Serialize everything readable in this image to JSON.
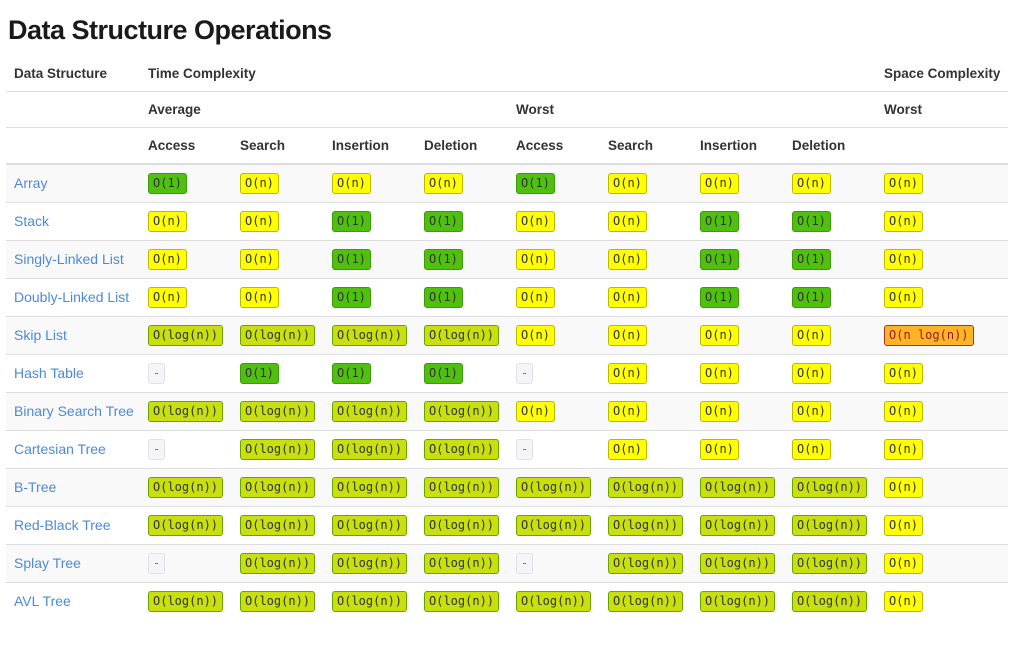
{
  "page": {
    "title": "Data Structure Operations"
  },
  "colors": {
    "excellent_green": "#4fc00e",
    "good_yellowgreen": "#c8e00e",
    "fair_yellow": "#ffff00",
    "bad_orange": "#ffb428",
    "na_text_red": "#d9534f",
    "link_blue": "#4a89dc",
    "stripe_gray": "#f9f9f9",
    "border_gray": "#dddddd"
  },
  "table": {
    "header": {
      "col1": "Data Structure",
      "time": "Time Complexity",
      "space": "Space Complexity",
      "group_average": "Average",
      "group_worst": "Worst",
      "space_worst": "Worst",
      "op_columns": [
        "Access",
        "Search",
        "Insertion",
        "Deletion",
        "Access",
        "Search",
        "Insertion",
        "Deletion"
      ]
    },
    "rows": [
      {
        "name": "Array",
        "cells": [
          {
            "text": "O(1)",
            "level": "green"
          },
          {
            "text": "O(n)",
            "level": "yellow"
          },
          {
            "text": "O(n)",
            "level": "yellow"
          },
          {
            "text": "O(n)",
            "level": "yellow"
          },
          {
            "text": "O(1)",
            "level": "green"
          },
          {
            "text": "O(n)",
            "level": "yellow"
          },
          {
            "text": "O(n)",
            "level": "yellow"
          },
          {
            "text": "O(n)",
            "level": "yellow"
          },
          {
            "text": "O(n)",
            "level": "yellow"
          }
        ]
      },
      {
        "name": "Stack",
        "cells": [
          {
            "text": "O(n)",
            "level": "yellow"
          },
          {
            "text": "O(n)",
            "level": "yellow"
          },
          {
            "text": "O(1)",
            "level": "green"
          },
          {
            "text": "O(1)",
            "level": "green"
          },
          {
            "text": "O(n)",
            "level": "yellow"
          },
          {
            "text": "O(n)",
            "level": "yellow"
          },
          {
            "text": "O(1)",
            "level": "green"
          },
          {
            "text": "O(1)",
            "level": "green"
          },
          {
            "text": "O(n)",
            "level": "yellow"
          }
        ]
      },
      {
        "name": "Singly-Linked List",
        "cells": [
          {
            "text": "O(n)",
            "level": "yellow"
          },
          {
            "text": "O(n)",
            "level": "yellow"
          },
          {
            "text": "O(1)",
            "level": "green"
          },
          {
            "text": "O(1)",
            "level": "green"
          },
          {
            "text": "O(n)",
            "level": "yellow"
          },
          {
            "text": "O(n)",
            "level": "yellow"
          },
          {
            "text": "O(1)",
            "level": "green"
          },
          {
            "text": "O(1)",
            "level": "green"
          },
          {
            "text": "O(n)",
            "level": "yellow"
          }
        ]
      },
      {
        "name": "Doubly-Linked List",
        "cells": [
          {
            "text": "O(n)",
            "level": "yellow"
          },
          {
            "text": "O(n)",
            "level": "yellow"
          },
          {
            "text": "O(1)",
            "level": "green"
          },
          {
            "text": "O(1)",
            "level": "green"
          },
          {
            "text": "O(n)",
            "level": "yellow"
          },
          {
            "text": "O(n)",
            "level": "yellow"
          },
          {
            "text": "O(1)",
            "level": "green"
          },
          {
            "text": "O(1)",
            "level": "green"
          },
          {
            "text": "O(n)",
            "level": "yellow"
          }
        ]
      },
      {
        "name": "Skip List",
        "cells": [
          {
            "text": "O(log(n))",
            "level": "yellowgreen"
          },
          {
            "text": "O(log(n))",
            "level": "yellowgreen"
          },
          {
            "text": "O(log(n))",
            "level": "yellowgreen"
          },
          {
            "text": "O(log(n))",
            "level": "yellowgreen"
          },
          {
            "text": "O(n)",
            "level": "yellow"
          },
          {
            "text": "O(n)",
            "level": "yellow"
          },
          {
            "text": "O(n)",
            "level": "yellow"
          },
          {
            "text": "O(n)",
            "level": "yellow"
          },
          {
            "text": "O(n log(n))",
            "level": "orange"
          }
        ]
      },
      {
        "name": "Hash Table",
        "cells": [
          {
            "text": "-",
            "level": "na"
          },
          {
            "text": "O(1)",
            "level": "green"
          },
          {
            "text": "O(1)",
            "level": "green"
          },
          {
            "text": "O(1)",
            "level": "green"
          },
          {
            "text": "-",
            "level": "na"
          },
          {
            "text": "O(n)",
            "level": "yellow"
          },
          {
            "text": "O(n)",
            "level": "yellow"
          },
          {
            "text": "O(n)",
            "level": "yellow"
          },
          {
            "text": "O(n)",
            "level": "yellow"
          }
        ]
      },
      {
        "name": "Binary Search Tree",
        "cells": [
          {
            "text": "O(log(n))",
            "level": "yellowgreen"
          },
          {
            "text": "O(log(n))",
            "level": "yellowgreen"
          },
          {
            "text": "O(log(n))",
            "level": "yellowgreen"
          },
          {
            "text": "O(log(n))",
            "level": "yellowgreen"
          },
          {
            "text": "O(n)",
            "level": "yellow"
          },
          {
            "text": "O(n)",
            "level": "yellow"
          },
          {
            "text": "O(n)",
            "level": "yellow"
          },
          {
            "text": "O(n)",
            "level": "yellow"
          },
          {
            "text": "O(n)",
            "level": "yellow"
          }
        ]
      },
      {
        "name": "Cartesian Tree",
        "cells": [
          {
            "text": "-",
            "level": "na"
          },
          {
            "text": "O(log(n))",
            "level": "yellowgreen"
          },
          {
            "text": "O(log(n))",
            "level": "yellowgreen"
          },
          {
            "text": "O(log(n))",
            "level": "yellowgreen"
          },
          {
            "text": "-",
            "level": "na"
          },
          {
            "text": "O(n)",
            "level": "yellow"
          },
          {
            "text": "O(n)",
            "level": "yellow"
          },
          {
            "text": "O(n)",
            "level": "yellow"
          },
          {
            "text": "O(n)",
            "level": "yellow"
          }
        ]
      },
      {
        "name": "B-Tree",
        "cells": [
          {
            "text": "O(log(n))",
            "level": "yellowgreen"
          },
          {
            "text": "O(log(n))",
            "level": "yellowgreen"
          },
          {
            "text": "O(log(n))",
            "level": "yellowgreen"
          },
          {
            "text": "O(log(n))",
            "level": "yellowgreen"
          },
          {
            "text": "O(log(n))",
            "level": "yellowgreen"
          },
          {
            "text": "O(log(n))",
            "level": "yellowgreen"
          },
          {
            "text": "O(log(n))",
            "level": "yellowgreen"
          },
          {
            "text": "O(log(n))",
            "level": "yellowgreen"
          },
          {
            "text": "O(n)",
            "level": "yellow"
          }
        ]
      },
      {
        "name": "Red-Black Tree",
        "cells": [
          {
            "text": "O(log(n))",
            "level": "yellowgreen"
          },
          {
            "text": "O(log(n))",
            "level": "yellowgreen"
          },
          {
            "text": "O(log(n))",
            "level": "yellowgreen"
          },
          {
            "text": "O(log(n))",
            "level": "yellowgreen"
          },
          {
            "text": "O(log(n))",
            "level": "yellowgreen"
          },
          {
            "text": "O(log(n))",
            "level": "yellowgreen"
          },
          {
            "text": "O(log(n))",
            "level": "yellowgreen"
          },
          {
            "text": "O(log(n))",
            "level": "yellowgreen"
          },
          {
            "text": "O(n)",
            "level": "yellow"
          }
        ]
      },
      {
        "name": "Splay Tree",
        "cells": [
          {
            "text": "-",
            "level": "na"
          },
          {
            "text": "O(log(n))",
            "level": "yellowgreen"
          },
          {
            "text": "O(log(n))",
            "level": "yellowgreen"
          },
          {
            "text": "O(log(n))",
            "level": "yellowgreen"
          },
          {
            "text": "-",
            "level": "na"
          },
          {
            "text": "O(log(n))",
            "level": "yellowgreen"
          },
          {
            "text": "O(log(n))",
            "level": "yellowgreen"
          },
          {
            "text": "O(log(n))",
            "level": "yellowgreen"
          },
          {
            "text": "O(n)",
            "level": "yellow"
          }
        ]
      },
      {
        "name": "AVL Tree",
        "cells": [
          {
            "text": "O(log(n))",
            "level": "yellowgreen"
          },
          {
            "text": "O(log(n))",
            "level": "yellowgreen"
          },
          {
            "text": "O(log(n))",
            "level": "yellowgreen"
          },
          {
            "text": "O(log(n))",
            "level": "yellowgreen"
          },
          {
            "text": "O(log(n))",
            "level": "yellowgreen"
          },
          {
            "text": "O(log(n))",
            "level": "yellowgreen"
          },
          {
            "text": "O(log(n))",
            "level": "yellowgreen"
          },
          {
            "text": "O(log(n))",
            "level": "yellowgreen"
          },
          {
            "text": "O(n)",
            "level": "yellow"
          }
        ]
      }
    ]
  }
}
